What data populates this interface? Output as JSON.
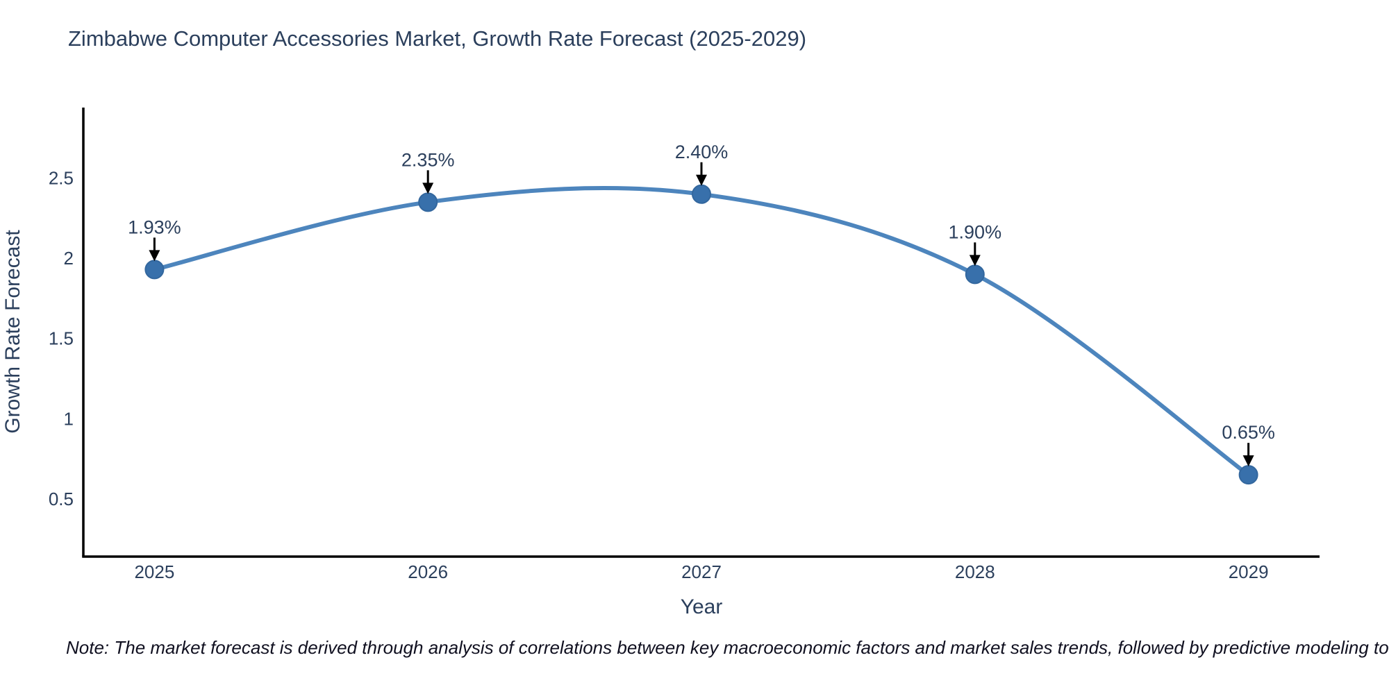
{
  "title": "Zimbabwe Computer Accessories Market, Growth Rate Forecast (2025-2029)",
  "note": "Note: The market forecast is derived through analysis of correlations between key macroeconomic factors and market sales trends, followed by predictive modeling to project future sales",
  "chart_data": {
    "type": "line",
    "title": "Zimbabwe Computer Accessories Market, Growth Rate Forecast (2025-2029)",
    "xlabel": "Year",
    "ylabel": "Growth Rate Forecast",
    "x": [
      2025,
      2026,
      2027,
      2028,
      2029
    ],
    "categories": [
      "2025",
      "2026",
      "2027",
      "2028",
      "2029"
    ],
    "values": [
      1.93,
      2.35,
      2.4,
      1.9,
      0.65
    ],
    "point_labels": [
      "1.93%",
      "2.35%",
      "2.40%",
      "1.90%",
      "0.65%"
    ],
    "yticks": [
      0.5,
      1,
      1.5,
      2,
      2.5
    ],
    "ytick_labels": [
      "0.5",
      "1",
      "1.5",
      "2",
      "2.5"
    ],
    "xlim": [
      2024.74,
      2029.26
    ],
    "ylim": [
      0.14,
      2.94
    ],
    "line_shape": "spline",
    "grid": false,
    "legend_position": "none",
    "line_color": "#4d85bd",
    "marker_color": "#3870ab",
    "arrow_color": "#000000",
    "text_color": "#2b3f5c",
    "axis_color": "#000000",
    "background_color": "#ffffff"
  }
}
